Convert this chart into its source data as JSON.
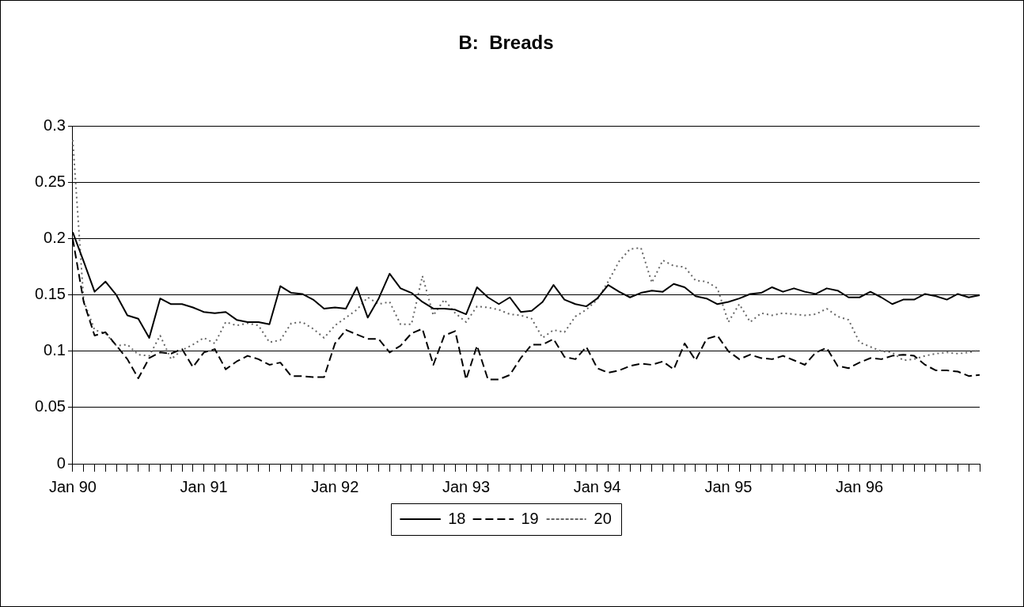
{
  "chart_data": {
    "type": "line",
    "title": "B:  Breads",
    "categories": [
      "Jan 90",
      null,
      null,
      null,
      null,
      null,
      null,
      null,
      null,
      null,
      null,
      null,
      "Jan 91",
      null,
      null,
      null,
      null,
      null,
      null,
      null,
      null,
      null,
      null,
      null,
      "Jan 92",
      null,
      null,
      null,
      null,
      null,
      null,
      null,
      null,
      null,
      null,
      null,
      "Jan 93",
      null,
      null,
      null,
      null,
      null,
      null,
      null,
      null,
      null,
      null,
      null,
      "Jan 94",
      null,
      null,
      null,
      null,
      null,
      null,
      null,
      null,
      null,
      null,
      null,
      "Jan 95",
      null,
      null,
      null,
      null,
      null,
      null,
      null,
      null,
      null,
      null,
      null,
      "Jan 96",
      null,
      null,
      null,
      null,
      null,
      null,
      null,
      null,
      null,
      null,
      null
    ],
    "series": [
      {
        "name": "18",
        "color": "#000000",
        "line_style": "solid",
        "values": [
          0.206,
          0.18,
          0.153,
          0.162,
          0.15,
          0.132,
          0.129,
          0.112,
          0.147,
          0.142,
          0.142,
          0.139,
          0.135,
          0.134,
          0.135,
          0.128,
          0.126,
          0.126,
          0.124,
          0.158,
          0.152,
          0.151,
          0.146,
          0.138,
          0.139,
          0.138,
          0.157,
          0.13,
          0.147,
          0.169,
          0.156,
          0.152,
          0.144,
          0.138,
          0.138,
          0.137,
          0.133,
          0.157,
          0.148,
          0.142,
          0.148,
          0.135,
          0.136,
          0.144,
          0.159,
          0.146,
          0.142,
          0.14,
          0.147,
          0.159,
          0.153,
          0.148,
          0.152,
          0.154,
          0.153,
          0.16,
          0.157,
          0.149,
          0.147,
          0.142,
          0.144,
          0.147,
          0.151,
          0.152,
          0.157,
          0.153,
          0.156,
          0.153,
          0.151,
          0.156,
          0.154,
          0.148,
          0.148,
          0.153,
          0.148,
          0.142,
          0.146,
          0.146,
          0.151,
          0.149,
          0.146,
          0.151,
          0.148,
          0.15
        ]
      },
      {
        "name": "19",
        "color": "#000000",
        "line_style": "dashed",
        "values": [
          0.2,
          0.144,
          0.114,
          0.117,
          0.105,
          0.093,
          0.076,
          0.094,
          0.099,
          0.098,
          0.102,
          0.086,
          0.099,
          0.102,
          0.084,
          0.091,
          0.096,
          0.093,
          0.088,
          0.09,
          0.078,
          0.078,
          0.077,
          0.077,
          0.107,
          0.119,
          0.115,
          0.111,
          0.111,
          0.099,
          0.105,
          0.116,
          0.12,
          0.088,
          0.114,
          0.118,
          0.075,
          0.105,
          0.075,
          0.075,
          0.079,
          0.094,
          0.106,
          0.106,
          0.111,
          0.095,
          0.093,
          0.104,
          0.085,
          0.081,
          0.083,
          0.087,
          0.089,
          0.088,
          0.091,
          0.084,
          0.107,
          0.092,
          0.111,
          0.114,
          0.1,
          0.093,
          0.097,
          0.094,
          0.093,
          0.096,
          0.092,
          0.088,
          0.099,
          0.103,
          0.087,
          0.085,
          0.09,
          0.094,
          0.093,
          0.096,
          0.097,
          0.096,
          0.088,
          0.083,
          0.083,
          0.082,
          0.078,
          0.079
        ]
      },
      {
        "name": "20",
        "color": "#666666",
        "line_style": "dotted",
        "values": [
          0.288,
          0.145,
          0.119,
          0.116,
          0.105,
          0.106,
          0.097,
          0.096,
          0.114,
          0.093,
          0.101,
          0.106,
          0.112,
          0.107,
          0.126,
          0.123,
          0.125,
          0.123,
          0.108,
          0.11,
          0.125,
          0.126,
          0.12,
          0.112,
          0.123,
          0.13,
          0.137,
          0.148,
          0.142,
          0.144,
          0.124,
          0.124,
          0.167,
          0.132,
          0.146,
          0.134,
          0.126,
          0.14,
          0.139,
          0.137,
          0.133,
          0.132,
          0.129,
          0.112,
          0.119,
          0.117,
          0.131,
          0.137,
          0.146,
          0.162,
          0.18,
          0.191,
          0.192,
          0.161,
          0.181,
          0.176,
          0.175,
          0.163,
          0.162,
          0.156,
          0.126,
          0.142,
          0.126,
          0.134,
          0.132,
          0.134,
          0.133,
          0.132,
          0.133,
          0.138,
          0.131,
          0.128,
          0.108,
          0.104,
          0.1,
          0.099,
          0.092,
          0.093,
          0.096,
          0.098,
          0.099,
          0.098,
          0.099,
          0.101
        ]
      }
    ],
    "ylim": [
      0,
      0.3
    ],
    "yticks": [
      0,
      0.05,
      0.1,
      0.15,
      0.2,
      0.25,
      0.3
    ],
    "grid": "y",
    "legend": "bottom",
    "marker": "none"
  }
}
